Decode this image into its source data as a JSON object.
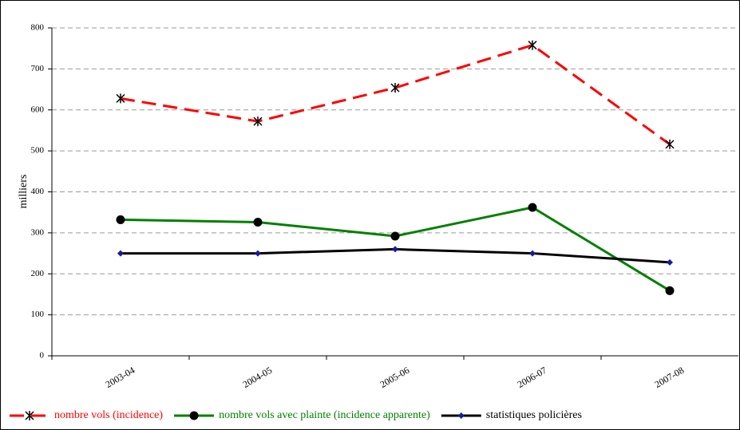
{
  "chart_data": {
    "type": "line",
    "y_label": "milliers",
    "categories": [
      "2003-04",
      "2004-05",
      "2005-06",
      "2006-07",
      "2007-08"
    ],
    "series": [
      {
        "name": "nombre vols (incidence)",
        "color": "#ff0000",
        "marker": "asterisk",
        "dash": true,
        "values": [
          628,
          572,
          654,
          758,
          516
        ]
      },
      {
        "name": "nombre vols avec plainte (incidence apparente)",
        "color": "#008000",
        "marker": "circle",
        "dash": false,
        "values": [
          332,
          326,
          292,
          362,
          159
        ]
      },
      {
        "name": "statistiques policières",
        "color": "#000000",
        "marker": "diamond",
        "dash": false,
        "values": [
          250,
          250,
          260,
          250,
          228
        ]
      }
    ],
    "ylim": [
      0,
      800
    ],
    "yticks": [
      0,
      100,
      200,
      300,
      400,
      500,
      600,
      700,
      800
    ],
    "grid": true
  }
}
